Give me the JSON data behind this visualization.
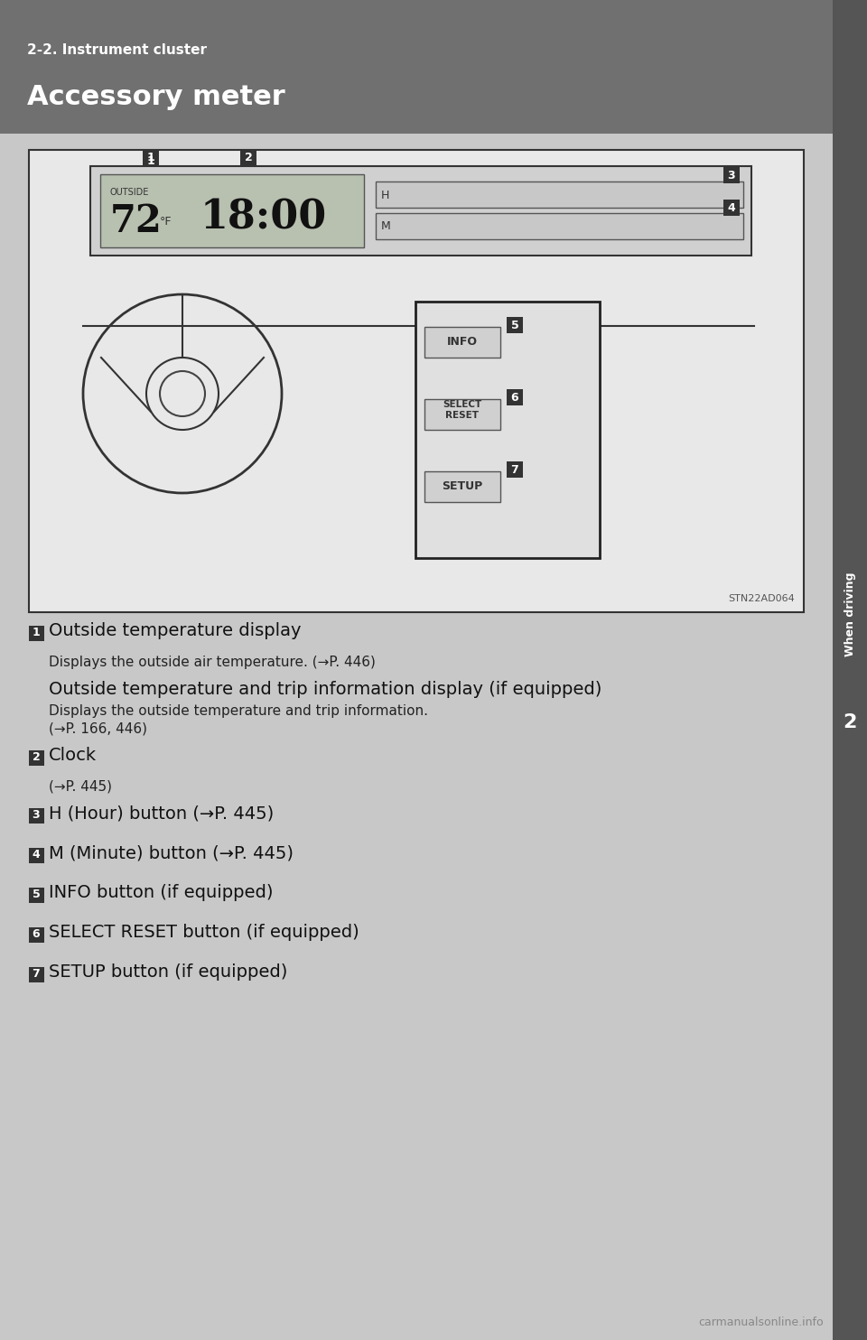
{
  "page_bg": "#c8c8c8",
  "header_bg": "#707070",
  "header_text_small": "2-2. Instrument cluster",
  "header_text_large": "Accessory meter",
  "header_text_color": "#ffffff",
  "right_bar_color": "#555555",
  "right_bar_text": "2",
  "right_bar_text_color": "#ffffff",
  "image_bg": "#f0f0f0",
  "image_border": "#333333",
  "stn_code": "STN22AD064",
  "items": [
    {
      "number": "1",
      "title": "Outside temperature display",
      "lines": [
        {
          "text": "Displays the outside air temperature. (→P. 446)",
          "size": 11,
          "indent": 1
        }
      ],
      "subheading": "Outside temperature and trip information display (if equipped)",
      "sublines": [
        {
          "text": "Displays the outside temperature and trip information.",
          "size": 11,
          "indent": 1
        },
        {
          "text": "(→P. 166, 446)",
          "size": 11,
          "indent": 1
        }
      ]
    },
    {
      "number": "2",
      "title": "Clock",
      "lines": [
        {
          "text": "(→P. 445)",
          "size": 11,
          "indent": 1
        }
      ],
      "subheading": null,
      "sublines": []
    },
    {
      "number": "3",
      "title": "H (Hour) button (→P. 445)",
      "lines": [],
      "subheading": null,
      "sublines": []
    },
    {
      "number": "4",
      "title": "M (Minute) button (→P. 445)",
      "lines": [],
      "subheading": null,
      "sublines": []
    },
    {
      "number": "5",
      "title": "INFO button (if equipped)",
      "lines": [],
      "subheading": null,
      "sublines": []
    },
    {
      "number": "6",
      "title": "SELECT RESET button (if equipped)",
      "lines": [],
      "subheading": null,
      "sublines": []
    },
    {
      "number": "7",
      "title": "SETUP button (if equipped)",
      "lines": [],
      "subheading": null,
      "sublines": []
    }
  ]
}
